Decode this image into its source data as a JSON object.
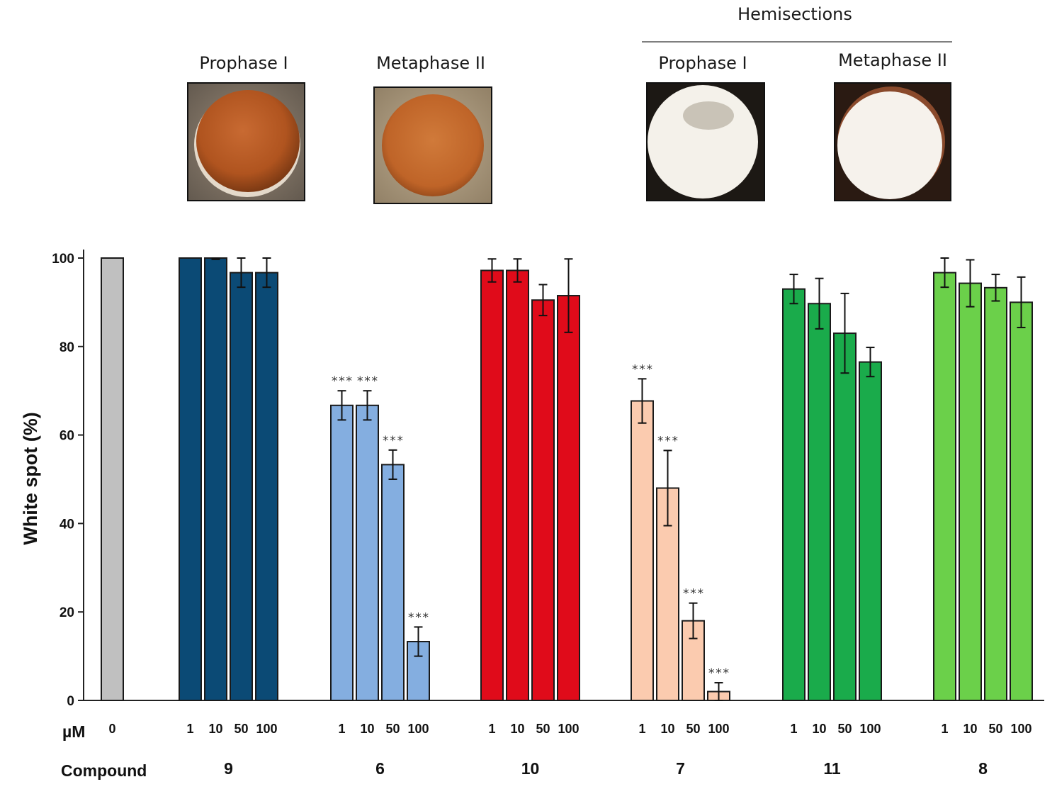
{
  "photos": {
    "hemisections_label": "Hemisections",
    "items": [
      {
        "label": "Prophase I",
        "kind": "intact"
      },
      {
        "label": "Metaphase II",
        "kind": "intact"
      },
      {
        "label": "Prophase I",
        "kind": "hemisection"
      },
      {
        "label": "Metaphase II",
        "kind": "hemisection"
      }
    ]
  },
  "chart_data": {
    "type": "bar",
    "title": "",
    "ylabel": "White spot (%)",
    "ylim": [
      0,
      100
    ],
    "yticks": [
      0,
      20,
      40,
      60,
      80,
      100
    ],
    "dose_row_label": "µM",
    "compound_row_label": "Compound",
    "groups": [
      {
        "compound": "",
        "color": "#c0c0c0",
        "bars": [
          {
            "dose": "0",
            "value": 100,
            "err": 0,
            "sig": ""
          }
        ]
      },
      {
        "compound": "9",
        "color": "#0b4a75",
        "bars": [
          {
            "dose": "1",
            "value": 100,
            "err": 0,
            "sig": ""
          },
          {
            "dose": "10",
            "value": 100,
            "err": 0.3,
            "sig": ""
          },
          {
            "dose": "50",
            "value": 96.7,
            "err": 3.3,
            "sig": ""
          },
          {
            "dose": "100",
            "value": 96.7,
            "err": 3.3,
            "sig": ""
          }
        ]
      },
      {
        "compound": "6",
        "color": "#84aee0",
        "bars": [
          {
            "dose": "1",
            "value": 66.7,
            "err": 3.3,
            "sig": "***"
          },
          {
            "dose": "10",
            "value": 66.7,
            "err": 3.3,
            "sig": "***"
          },
          {
            "dose": "50",
            "value": 53.3,
            "err": 3.3,
            "sig": "***"
          },
          {
            "dose": "100",
            "value": 13.3,
            "err": 3.3,
            "sig": "***"
          }
        ]
      },
      {
        "compound": "10",
        "color": "#e00b1a",
        "bars": [
          {
            "dose": "1",
            "value": 97.2,
            "err": 2.6,
            "sig": ""
          },
          {
            "dose": "10",
            "value": 97.2,
            "err": 2.6,
            "sig": ""
          },
          {
            "dose": "50",
            "value": 90.5,
            "err": 3.5,
            "sig": ""
          },
          {
            "dose": "100",
            "value": 91.5,
            "err": 8.3,
            "sig": ""
          }
        ]
      },
      {
        "compound": "7",
        "color": "#fbcbaf",
        "bars": [
          {
            "dose": "1",
            "value": 67.7,
            "err": 5.0,
            "sig": "***"
          },
          {
            "dose": "10",
            "value": 48.0,
            "err": 8.5,
            "sig": "***"
          },
          {
            "dose": "50",
            "value": 18.0,
            "err": 4.0,
            "sig": "***"
          },
          {
            "dose": "100",
            "value": 2.0,
            "err": 2.0,
            "sig": "***"
          }
        ]
      },
      {
        "compound": "11",
        "color": "#1aab4b",
        "bars": [
          {
            "dose": "1",
            "value": 93.0,
            "err": 3.3,
            "sig": ""
          },
          {
            "dose": "10",
            "value": 89.7,
            "err": 5.7,
            "sig": ""
          },
          {
            "dose": "50",
            "value": 83.0,
            "err": 9.0,
            "sig": ""
          },
          {
            "dose": "100",
            "value": 76.5,
            "err": 3.3,
            "sig": ""
          }
        ]
      },
      {
        "compound": "8",
        "color": "#6bd04a",
        "bars": [
          {
            "dose": "1",
            "value": 96.7,
            "err": 3.3,
            "sig": ""
          },
          {
            "dose": "10",
            "value": 94.3,
            "err": 5.3,
            "sig": ""
          },
          {
            "dose": "50",
            "value": 93.3,
            "err": 3.0,
            "sig": ""
          },
          {
            "dose": "100",
            "value": 90.0,
            "err": 5.7,
            "sig": ""
          }
        ]
      }
    ]
  }
}
